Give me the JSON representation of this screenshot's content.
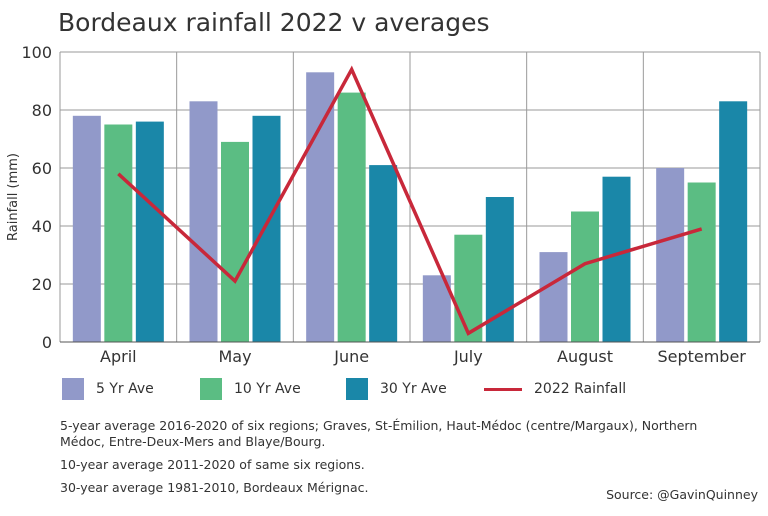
{
  "title": "Bordeaux rainfall 2022 v averages",
  "chart_data": {
    "type": "bar",
    "categories": [
      "April",
      "May",
      "June",
      "July",
      "August",
      "September"
    ],
    "series": [
      {
        "name": "5 Yr Ave",
        "kind": "bar",
        "color": "#9199c9",
        "values": [
          78,
          83,
          93,
          23,
          31,
          60
        ]
      },
      {
        "name": "10 Yr Ave",
        "kind": "bar",
        "color": "#5bbd83",
        "values": [
          75,
          69,
          86,
          37,
          45,
          55
        ]
      },
      {
        "name": "30 Yr Ave",
        "kind": "bar",
        "color": "#1a87a8",
        "values": [
          76,
          78,
          61,
          50,
          57,
          83
        ]
      },
      {
        "name": "2022 Rainfall",
        "kind": "line",
        "color": "#c8283a",
        "values": [
          58,
          21,
          94,
          3,
          27,
          39
        ]
      }
    ],
    "ylabel": "Rainfall (mm)",
    "xlabel": "",
    "ylim": [
      0,
      100
    ],
    "yticks": [
      0,
      20,
      40,
      60,
      80,
      100
    ],
    "grid": true,
    "legend_position": "bottom"
  },
  "notes": [
    "5-year average 2016-2020 of six regions; Graves, St-Émilion, Haut-Médoc (centre/Margaux), Northern Médoc, Entre-Deux-Mers and Blaye/Bourg.",
    "10-year average 2011-2020 of same six regions.",
    "30-year average 1981-2010, Bordeaux Mérignac."
  ],
  "source": "Source: @GavinQuinney"
}
